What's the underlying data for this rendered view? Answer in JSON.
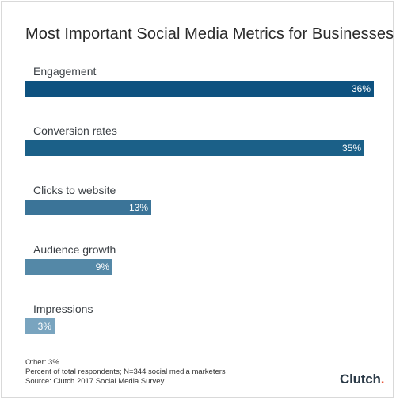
{
  "chart_data": {
    "type": "bar",
    "orientation": "horizontal",
    "title": "Most Important Social Media Metrics for Businesses",
    "categories": [
      "Engagement",
      "Conversion rates",
      "Clicks to website",
      "Audience growth",
      "Impressions"
    ],
    "values": [
      36,
      35,
      13,
      9,
      3
    ],
    "value_labels": [
      "36%",
      "35%",
      "13%",
      "9%",
      "3%"
    ],
    "unit": "%",
    "bar_colors": [
      "#0e5280",
      "#1b6088",
      "#3b7498",
      "#5488a7",
      "#79a4bf"
    ],
    "grid": false
  },
  "footnotes": [
    "Other: 3%",
    "Percent of total respondents; N=344 social media marketers",
    "Source: Clutch 2017 Social Media Survey"
  ],
  "logo": {
    "text_main": "Clutch",
    "dot_color": "#e8563a"
  }
}
